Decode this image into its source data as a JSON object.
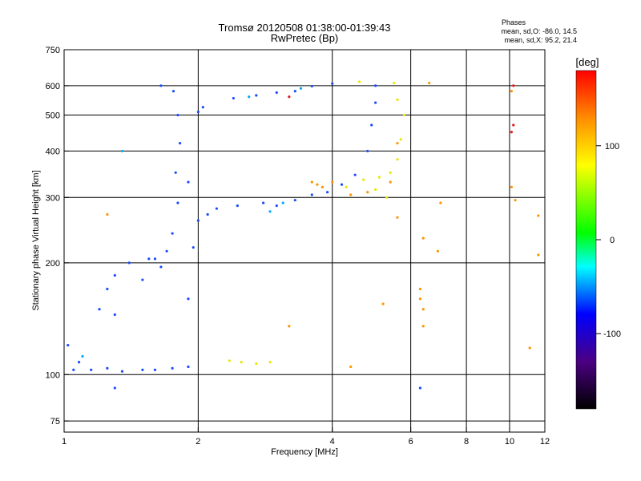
{
  "chart_data": {
    "type": "scatter",
    "title": "Tromsø 20120508 01:38:00-01:39:43",
    "subtitle": "RwPretec (Bp)",
    "xlabel": "Frequency [MHz]",
    "ylabel": "Stationary phase Virtual Height [km]",
    "xscale": "log",
    "yscale": "log",
    "xlim": [
      1,
      12
    ],
    "ylim": [
      70,
      750
    ],
    "xticks": [
      1,
      2,
      4,
      6,
      8,
      10,
      12
    ],
    "xtick_labels": [
      "1",
      "2",
      "4",
      "6",
      "8",
      "10",
      "12"
    ],
    "yticks": [
      75,
      100,
      200,
      300,
      400,
      500,
      600,
      750
    ],
    "ytick_labels": [
      "75",
      "100",
      "200",
      "300",
      "400",
      "500",
      "600",
      "750"
    ],
    "grid": true,
    "legend": {
      "title": "Phases",
      "entries": [
        "mean, sd,O: -86.0, 14.5",
        "mean, sd,X:  95.2, 21.4"
      ],
      "placement": "top-right"
    },
    "colorbar": {
      "label": "[deg]",
      "range": [
        -180,
        180
      ],
      "ticks": [
        100,
        0,
        -100
      ],
      "tick_labels": [
        "100",
        "0",
        "-100"
      ]
    },
    "series": [
      {
        "phase": -86.0,
        "color": "#1a4cff",
        "points": [
          [
            1.05,
            103
          ],
          [
            1.15,
            103
          ],
          [
            1.25,
            104
          ],
          [
            1.35,
            102
          ],
          [
            1.5,
            103
          ],
          [
            1.6,
            103
          ],
          [
            1.75,
            104
          ],
          [
            1.9,
            105
          ],
          [
            1.08,
            108
          ],
          [
            1.02,
            120
          ],
          [
            1.2,
            150
          ],
          [
            1.25,
            170
          ],
          [
            1.3,
            145
          ],
          [
            1.3,
            185
          ],
          [
            1.4,
            200
          ],
          [
            1.5,
            180
          ],
          [
            1.55,
            205
          ],
          [
            1.6,
            205
          ],
          [
            1.65,
            195
          ],
          [
            1.7,
            215
          ],
          [
            1.75,
            240
          ],
          [
            1.8,
            290
          ],
          [
            1.78,
            350
          ],
          [
            1.82,
            420
          ],
          [
            1.8,
            500
          ],
          [
            1.76,
            580
          ],
          [
            1.9,
            160
          ],
          [
            1.95,
            220
          ],
          [
            2.0,
            260
          ],
          [
            1.9,
            330
          ],
          [
            2.1,
            270
          ],
          [
            2.2,
            280
          ],
          [
            2.0,
            510
          ],
          [
            2.45,
            285
          ],
          [
            2.8,
            290
          ],
          [
            3.0,
            285
          ],
          [
            3.3,
            295
          ],
          [
            3.6,
            305
          ],
          [
            3.9,
            310
          ],
          [
            4.2,
            325
          ],
          [
            4.5,
            345
          ],
          [
            4.8,
            400
          ],
          [
            4.9,
            470
          ],
          [
            5.0,
            540
          ],
          [
            5.0,
            600
          ],
          [
            2.4,
            555
          ],
          [
            2.7,
            565
          ],
          [
            3.0,
            575
          ],
          [
            3.3,
            580
          ],
          [
            3.6,
            598
          ],
          [
            4.0,
            608
          ],
          [
            2.05,
            525
          ],
          [
            6.3,
            92
          ],
          [
            1.3,
            92
          ],
          [
            1.65,
            600
          ]
        ]
      },
      {
        "phase": -60.0,
        "color": "#00a8ff",
        "points": [
          [
            2.6,
            560
          ],
          [
            3.4,
            590
          ],
          [
            1.35,
            400
          ],
          [
            3.1,
            290
          ],
          [
            2.9,
            275
          ],
          [
            1.1,
            112
          ]
        ]
      },
      {
        "phase": 95.2,
        "color": "#e8e800",
        "points": [
          [
            2.35,
            109
          ],
          [
            2.5,
            108
          ],
          [
            2.7,
            107
          ],
          [
            2.9,
            108
          ],
          [
            4.3,
            320
          ],
          [
            4.7,
            335
          ],
          [
            5.1,
            340
          ],
          [
            5.4,
            350
          ],
          [
            5.6,
            380
          ],
          [
            5.7,
            430
          ],
          [
            5.8,
            500
          ],
          [
            5.6,
            550
          ],
          [
            5.5,
            610
          ],
          [
            5.3,
            300
          ],
          [
            5.0,
            315
          ],
          [
            4.6,
            615
          ]
        ]
      },
      {
        "phase": 130.0,
        "color": "#ff9400",
        "points": [
          [
            3.6,
            330
          ],
          [
            3.7,
            325
          ],
          [
            3.8,
            320
          ],
          [
            4.0,
            330
          ],
          [
            4.4,
            305
          ],
          [
            4.8,
            310
          ],
          [
            5.4,
            330
          ],
          [
            5.6,
            420
          ],
          [
            6.3,
            170
          ],
          [
            6.3,
            160
          ],
          [
            6.4,
            150
          ],
          [
            10.1,
            580
          ],
          [
            10.3,
            295
          ],
          [
            10.1,
            320
          ],
          [
            11.6,
            268
          ],
          [
            11.6,
            210
          ],
          [
            7.0,
            290
          ],
          [
            6.6,
            610
          ],
          [
            4.4,
            105
          ],
          [
            5.2,
            155
          ],
          [
            6.4,
            135
          ],
          [
            3.2,
            135
          ],
          [
            1.25,
            270
          ],
          [
            6.9,
            215
          ],
          [
            5.6,
            265
          ],
          [
            6.4,
            233
          ],
          [
            11.1,
            118
          ]
        ]
      },
      {
        "phase": 165.0,
        "color": "#e81818",
        "points": [
          [
            3.2,
            560
          ],
          [
            10.1,
            450
          ],
          [
            10.2,
            600
          ],
          [
            10.2,
            470
          ]
        ]
      }
    ]
  }
}
